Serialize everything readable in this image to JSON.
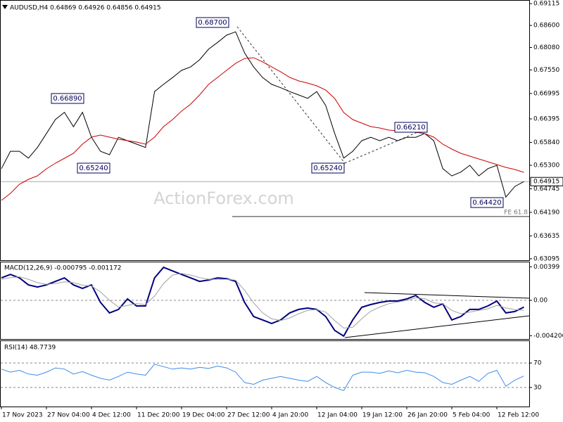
{
  "chart_data": [
    {
      "type": "line",
      "title": "AUDUSD,H4  0.64869 0.64926 0.64856 0.64915",
      "watermark": "ActionForex.com",
      "ylim": [
        0.6306,
        0.692
      ],
      "yticks": [
        {
          "value": 0.69115,
          "label": "0.69115"
        },
        {
          "value": 0.686,
          "label": "0.68600"
        },
        {
          "value": 0.6808,
          "label": "0.68080"
        },
        {
          "value": 0.6755,
          "label": "0.67550"
        },
        {
          "value": 0.66995,
          "label": "0.66995"
        },
        {
          "value": 0.66395,
          "label": "0.66395"
        },
        {
          "value": 0.6584,
          "label": "0.65840"
        },
        {
          "value": 0.653,
          "label": "0.65300"
        },
        {
          "value": 0.64745,
          "label": "0.64745"
        },
        {
          "value": 0.6419,
          "label": "0.64190"
        },
        {
          "value": 0.63635,
          "label": "0.63635"
        },
        {
          "value": 0.63095,
          "label": "0.63095"
        }
      ],
      "grid": false,
      "last_price": {
        "value": 0.64915,
        "label": "0.64915"
      },
      "fe_level": 0.6409,
      "annotations": [
        "0.68700",
        "0.66890",
        "0.65240",
        "0.65240",
        "0.66210",
        "0.64420",
        "FE 61.8"
      ],
      "series": [
        {
          "color": "#000000",
          "values": [
            0.6522,
            0.6563,
            0.6563,
            0.6547,
            0.6572,
            0.6605,
            0.6638,
            0.6655,
            0.6621,
            0.6655,
            0.6596,
            0.6563,
            0.6555,
            0.6596,
            0.6588,
            0.658,
            0.6572,
            0.6704,
            0.6721,
            0.6737,
            0.6754,
            0.6762,
            0.6779,
            0.6804,
            0.682,
            0.6837,
            0.6845,
            0.6795,
            0.6762,
            0.6737,
            0.6721,
            0.6713,
            0.6704,
            0.6696,
            0.6688,
            0.6704,
            0.6671,
            0.6605,
            0.6547,
            0.6563,
            0.6588,
            0.6596,
            0.6588,
            0.6596,
            0.6588,
            0.6596,
            0.6596,
            0.6605,
            0.6588,
            0.6522,
            0.6505,
            0.6514,
            0.653,
            0.6505,
            0.6522,
            0.653,
            0.6455,
            0.648,
            0.64915
          ]
        },
        {
          "color": "#cc0000",
          "values": [
            0.64472,
            0.64637,
            0.64853,
            0.64969,
            0.65052,
            0.65218,
            0.6535,
            0.65467,
            0.65583,
            0.65798,
            0.65964,
            0.66014,
            0.65964,
            0.65914,
            0.65881,
            0.65848,
            0.65798,
            0.65964,
            0.66213,
            0.66379,
            0.66578,
            0.66743,
            0.66959,
            0.67208,
            0.67374,
            0.6754,
            0.67705,
            0.67821,
            0.67838,
            0.67739,
            0.67622,
            0.67506,
            0.67374,
            0.67291,
            0.67241,
            0.67175,
            0.67075,
            0.66876,
            0.66545,
            0.66379,
            0.66296,
            0.66213,
            0.6618,
            0.6613,
            0.66113,
            0.66097,
            0.6608,
            0.66047,
            0.65964,
            0.65798,
            0.65682,
            0.65583,
            0.65516,
            0.6545,
            0.65384,
            0.65317,
            0.65251,
            0.65201,
            0.65135
          ]
        }
      ]
    },
    {
      "type": "line",
      "title": "MACD(12,26,9) -0.000795 -0.001172",
      "ylim": [
        -0.0046,
        0.0046
      ],
      "yticks": [
        {
          "value": 0.00399,
          "label": "0.00399"
        },
        {
          "value": 0,
          "label": "0.00"
        },
        {
          "value": -0.004206,
          "label": "-0.004206"
        }
      ],
      "grid": false,
      "series": [
        {
          "color": "#000080",
          "values": [
            0.00267,
            0.00308,
            0.00267,
            0.00183,
            0.00158,
            0.00183,
            0.00225,
            0.00267,
            0.00183,
            0.00142,
            0.00183,
            -0.00025,
            -0.0015,
            -0.00108,
            0.00017,
            -0.00067,
            -0.00067,
            0.00267,
            0.00392,
            0.0035,
            0.00308,
            0.00267,
            0.00225,
            0.00242,
            0.00267,
            0.00258,
            0.00225,
            -0.00025,
            -0.00192,
            -0.00233,
            -0.00275,
            -0.00233,
            -0.0015,
            -0.00108,
            -0.00092,
            -0.00108,
            -0.00192,
            -0.00358,
            -0.00425,
            -0.00233,
            -0.00083,
            -0.0005,
            -0.00025,
            -8e-05,
            -8e-05,
            0.00017,
            0.00058,
            -0.00025,
            -0.00083,
            -0.00042,
            -0.00233,
            -0.00192,
            -0.00108,
            -0.00108,
            -0.00067,
            -8e-05,
            -0.0015,
            -0.00133,
            -0.0008
          ]
        },
        {
          "color": "#a0a0a0",
          "values": [
            0.0025,
            0.0027,
            0.0028,
            0.0025,
            0.0021,
            0.0019,
            0.002,
            0.0022,
            0.0021,
            0.0018,
            0.0017,
            0.001,
            0,
            -0.0008,
            -0.0006,
            -0.0004,
            -0.0005,
            0.0005,
            0.002,
            0.003,
            0.0032,
            0.003,
            0.0027,
            0.0025,
            0.0025,
            0.0025,
            0.0024,
            0.0012,
            -0.0003,
            -0.0015,
            -0.0022,
            -0.0024,
            -0.0021,
            -0.0016,
            -0.0012,
            -0.0011,
            -0.0014,
            -0.0024,
            -0.0033,
            -0.0032,
            -0.0022,
            -0.0013,
            -0.0008,
            -0.0004,
            -0.0002,
            0,
            0.0003,
            0.0002,
            -0.0003,
            -0.0004,
            -0.0012,
            -0.0016,
            -0.0014,
            -0.0012,
            -0.001,
            -0.0006,
            -0.0009,
            -0.0011,
            -0.0012
          ]
        }
      ]
    },
    {
      "type": "line",
      "title": "RSI(14) 48.7739",
      "ylim": [
        0,
        100
      ],
      "yticks": [
        70,
        30
      ],
      "grid": true,
      "categories": [
        "17 Nov 2023",
        null,
        null,
        null,
        null,
        "27 Nov 04:00",
        null,
        null,
        null,
        null,
        "4 Dec 12:00",
        null,
        null,
        null,
        null,
        "11 Dec 20:00",
        null,
        null,
        null,
        null,
        "19 Dec 04:00",
        null,
        null,
        null,
        null,
        "27 Dec 12:00",
        null,
        null,
        null,
        null,
        "4 Jan 20:00",
        null,
        null,
        null,
        null,
        "12 Jan 04:00",
        null,
        null,
        null,
        null,
        "19 Jan 12:00",
        null,
        null,
        null,
        null,
        "26 Jan 20:00",
        null,
        null,
        null,
        null,
        "5 Feb 04:00",
        null,
        null,
        null,
        null,
        "12 Feb 12:00",
        null,
        null,
        null
      ],
      "series": [
        {
          "color": "#3c8ce7",
          "values": [
            60,
            55,
            58,
            52,
            50,
            55,
            62,
            60,
            52,
            56,
            50,
            45,
            42,
            48,
            55,
            52,
            50,
            68,
            64,
            60,
            62,
            60,
            63,
            61,
            65,
            62,
            55,
            38,
            35,
            42,
            45,
            48,
            45,
            42,
            40,
            48,
            38,
            30,
            25,
            50,
            55,
            55,
            53,
            57,
            54,
            58,
            55,
            54,
            48,
            38,
            35,
            42,
            48,
            40,
            53,
            58,
            32,
            42,
            48.7739
          ]
        }
      ]
    }
  ]
}
